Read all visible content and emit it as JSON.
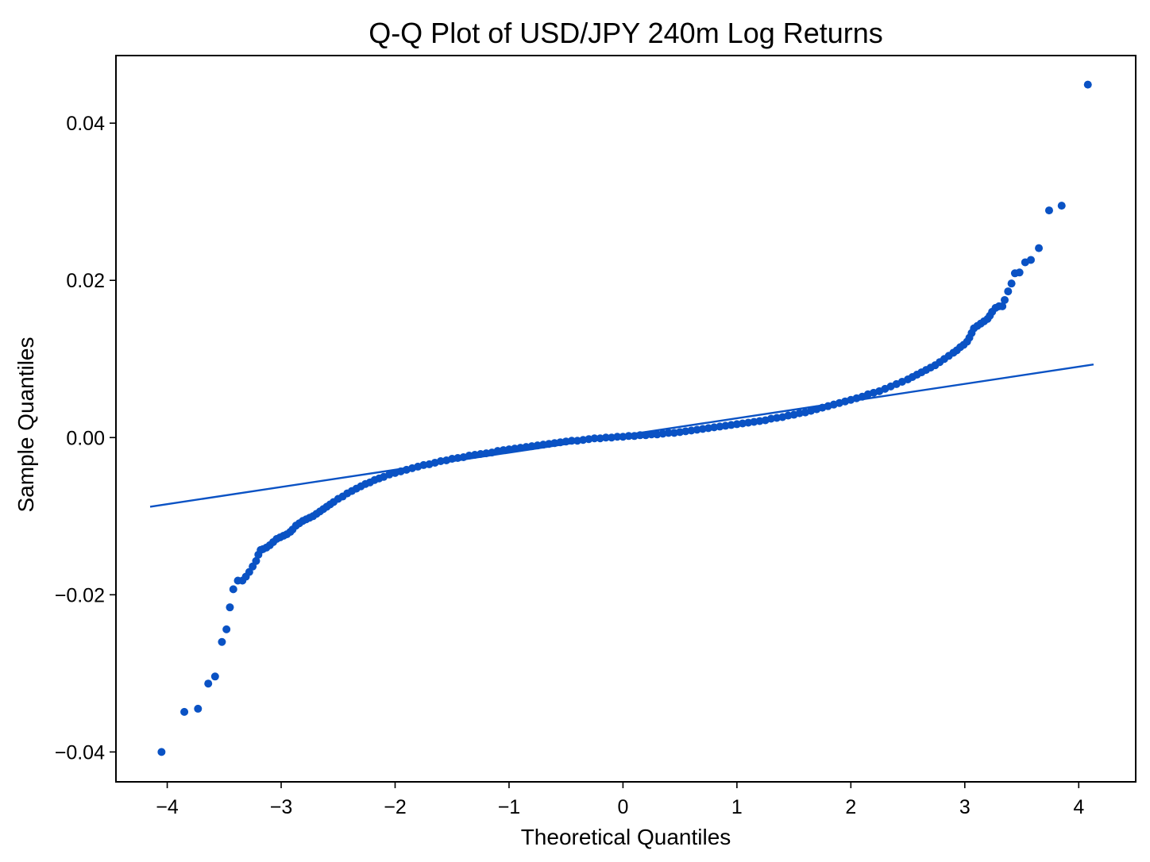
{
  "chart_data": {
    "type": "scatter",
    "title": "Q-Q Plot of USD/JPY 240m Log Returns",
    "xlabel": "Theoretical Quantiles",
    "ylabel": "Sample Quantiles",
    "xlim": [
      -4.45,
      4.5
    ],
    "ylim": [
      -0.0438,
      0.0486
    ],
    "grid": false,
    "legend": "none",
    "colors": {
      "marker": "#0a52c4",
      "line": "#0a52c4",
      "axes": "#000000"
    },
    "xticks": [
      {
        "value": -4,
        "label": "−4"
      },
      {
        "value": -3,
        "label": "−3"
      },
      {
        "value": -2,
        "label": "−2"
      },
      {
        "value": -1,
        "label": "−1"
      },
      {
        "value": 0,
        "label": "0"
      },
      {
        "value": 1,
        "label": "1"
      },
      {
        "value": 2,
        "label": "2"
      },
      {
        "value": 3,
        "label": "3"
      },
      {
        "value": 4,
        "label": "4"
      }
    ],
    "yticks": [
      {
        "value": 0.04,
        "label": "0.04"
      },
      {
        "value": 0.02,
        "label": "0.02"
      },
      {
        "value": 0.0,
        "label": "0.00"
      },
      {
        "value": -0.02,
        "label": "−0.02"
      },
      {
        "value": -0.04,
        "label": "−0.04"
      }
    ],
    "reference_line": {
      "x": [
        -4.15,
        4.13
      ],
      "y": [
        -0.0088,
        0.0093
      ]
    },
    "series": [
      {
        "points": [
          [
            -4.05,
            -0.04
          ],
          [
            -3.85,
            -0.0349
          ],
          [
            -3.73,
            -0.0345
          ],
          [
            -3.64,
            -0.0313
          ],
          [
            -3.58,
            -0.0304
          ],
          [
            -3.52,
            -0.026
          ],
          [
            -3.48,
            -0.0244
          ],
          [
            -3.45,
            -0.0216
          ],
          [
            -3.42,
            -0.0193
          ],
          [
            -3.38,
            -0.0182
          ],
          [
            -3.34,
            -0.0182
          ],
          [
            -3.31,
            -0.0177
          ],
          [
            -3.28,
            -0.0171
          ],
          [
            -3.25,
            -0.0164
          ],
          [
            -3.22,
            -0.0157
          ],
          [
            -3.2,
            -0.0149
          ],
          [
            -3.18,
            -0.0143
          ],
          [
            -3.16,
            -0.0142
          ],
          [
            -3.13,
            -0.014
          ],
          [
            -3.1,
            -0.0137
          ],
          [
            -3.07,
            -0.0133
          ],
          [
            -3.04,
            -0.0129
          ],
          [
            -3.01,
            -0.0127
          ],
          [
            -2.98,
            -0.0125
          ],
          [
            -2.95,
            -0.0123
          ],
          [
            -2.92,
            -0.012
          ],
          [
            -2.9,
            -0.0117
          ],
          [
            -2.87,
            -0.0112
          ],
          [
            -2.84,
            -0.0109
          ],
          [
            -2.81,
            -0.0106
          ],
          [
            -2.78,
            -0.0104
          ],
          [
            -2.75,
            -0.0102
          ],
          [
            -2.72,
            -0.01
          ],
          [
            -2.69,
            -0.0097
          ],
          [
            -2.66,
            -0.0094
          ],
          [
            -2.63,
            -0.0091
          ],
          [
            -2.6,
            -0.0088
          ],
          [
            -2.57,
            -0.0085
          ],
          [
            -2.54,
            -0.0082
          ],
          [
            -2.5,
            -0.0078
          ],
          [
            -2.46,
            -0.0075
          ],
          [
            -2.42,
            -0.0071
          ],
          [
            -2.38,
            -0.0068
          ],
          [
            -2.34,
            -0.0065
          ],
          [
            -2.3,
            -0.0062
          ],
          [
            -2.26,
            -0.0059
          ],
          [
            -2.22,
            -0.0057
          ],
          [
            -2.18,
            -0.0054
          ],
          [
            -2.14,
            -0.0052
          ],
          [
            -2.1,
            -0.005
          ],
          [
            -2.05,
            -0.0047
          ],
          [
            -2.0,
            -0.0045
          ],
          [
            -1.95,
            -0.0043
          ],
          [
            -1.9,
            -0.0041
          ],
          [
            -1.85,
            -0.0039
          ],
          [
            -1.8,
            -0.0037
          ],
          [
            -1.75,
            -0.0035
          ],
          [
            -1.7,
            -0.0034
          ],
          [
            -1.65,
            -0.0032
          ],
          [
            -1.6,
            -0.003
          ],
          [
            -1.55,
            -0.0029
          ],
          [
            -1.5,
            -0.0027
          ],
          [
            -1.45,
            -0.0026
          ],
          [
            -1.4,
            -0.0025
          ],
          [
            -1.35,
            -0.0023
          ],
          [
            -1.3,
            -0.0022
          ],
          [
            -1.25,
            -0.0021
          ],
          [
            -1.2,
            -0.002
          ],
          [
            -1.15,
            -0.0019
          ],
          [
            -1.1,
            -0.0017
          ],
          [
            -1.05,
            -0.0016
          ],
          [
            -1.0,
            -0.0015
          ],
          [
            -0.95,
            -0.0014
          ],
          [
            -0.9,
            -0.0013
          ],
          [
            -0.85,
            -0.0012
          ],
          [
            -0.8,
            -0.0011
          ],
          [
            -0.75,
            -0.001
          ],
          [
            -0.7,
            -0.0009
          ],
          [
            -0.65,
            -0.0008
          ],
          [
            -0.6,
            -0.0007
          ],
          [
            -0.55,
            -0.0006
          ],
          [
            -0.5,
            -0.0005
          ],
          [
            -0.45,
            -0.0004
          ],
          [
            -0.4,
            -0.0004
          ],
          [
            -0.35,
            -0.0003
          ],
          [
            -0.3,
            -0.0002
          ],
          [
            -0.25,
            -0.0001
          ],
          [
            -0.2,
            -0.0001
          ],
          [
            -0.15,
            0.0
          ],
          [
            -0.1,
            0.0
          ],
          [
            -0.05,
            0.0001
          ],
          [
            0.0,
            0.0001
          ],
          [
            0.05,
            0.0002
          ],
          [
            0.1,
            0.0002
          ],
          [
            0.15,
            0.0003
          ],
          [
            0.2,
            0.0003
          ],
          [
            0.25,
            0.0004
          ],
          [
            0.3,
            0.0004
          ],
          [
            0.35,
            0.0005
          ],
          [
            0.4,
            0.0006
          ],
          [
            0.45,
            0.0006
          ],
          [
            0.5,
            0.0007
          ],
          [
            0.55,
            0.0008
          ],
          [
            0.6,
            0.0009
          ],
          [
            0.65,
            0.001
          ],
          [
            0.7,
            0.0011
          ],
          [
            0.75,
            0.0012
          ],
          [
            0.8,
            0.0013
          ],
          [
            0.85,
            0.0014
          ],
          [
            0.9,
            0.0015
          ],
          [
            0.95,
            0.0016
          ],
          [
            1.0,
            0.0017
          ],
          [
            1.05,
            0.0018
          ],
          [
            1.1,
            0.0019
          ],
          [
            1.15,
            0.002
          ],
          [
            1.2,
            0.0021
          ],
          [
            1.25,
            0.0022
          ],
          [
            1.3,
            0.0024
          ],
          [
            1.35,
            0.0025
          ],
          [
            1.4,
            0.0026
          ],
          [
            1.45,
            0.0028
          ],
          [
            1.5,
            0.0029
          ],
          [
            1.55,
            0.0031
          ],
          [
            1.6,
            0.0032
          ],
          [
            1.65,
            0.0034
          ],
          [
            1.7,
            0.0036
          ],
          [
            1.75,
            0.0038
          ],
          [
            1.8,
            0.004
          ],
          [
            1.85,
            0.0042
          ],
          [
            1.9,
            0.0044
          ],
          [
            1.95,
            0.0046
          ],
          [
            2.0,
            0.0048
          ],
          [
            2.05,
            0.005
          ],
          [
            2.1,
            0.0052
          ],
          [
            2.15,
            0.0055
          ],
          [
            2.2,
            0.0057
          ],
          [
            2.25,
            0.0059
          ],
          [
            2.3,
            0.0062
          ],
          [
            2.35,
            0.0065
          ],
          [
            2.4,
            0.0068
          ],
          [
            2.45,
            0.0071
          ],
          [
            2.5,
            0.0074
          ],
          [
            2.54,
            0.0077
          ],
          [
            2.58,
            0.008
          ],
          [
            2.62,
            0.0083
          ],
          [
            2.66,
            0.0086
          ],
          [
            2.7,
            0.0089
          ],
          [
            2.74,
            0.0092
          ],
          [
            2.78,
            0.0096
          ],
          [
            2.82,
            0.01
          ],
          [
            2.86,
            0.0104
          ],
          [
            2.9,
            0.0108
          ],
          [
            2.93,
            0.0111
          ],
          [
            2.96,
            0.0115
          ],
          [
            2.99,
            0.0118
          ],
          [
            3.02,
            0.0122
          ],
          [
            3.04,
            0.0127
          ],
          [
            3.06,
            0.0133
          ],
          [
            3.08,
            0.0139
          ],
          [
            3.11,
            0.0142
          ],
          [
            3.14,
            0.0145
          ],
          [
            3.17,
            0.0148
          ],
          [
            3.2,
            0.0151
          ],
          [
            3.22,
            0.0155
          ],
          [
            3.24,
            0.016
          ],
          [
            3.27,
            0.0165
          ],
          [
            3.3,
            0.0167
          ],
          [
            3.33,
            0.0167
          ],
          [
            3.35,
            0.0175
          ],
          [
            3.38,
            0.0186
          ],
          [
            3.41,
            0.0196
          ],
          [
            3.44,
            0.0209
          ],
          [
            3.48,
            0.021
          ],
          [
            3.53,
            0.0223
          ],
          [
            3.58,
            0.0226
          ],
          [
            3.65,
            0.0241
          ],
          [
            3.74,
            0.0289
          ],
          [
            3.85,
            0.0295
          ],
          [
            4.08,
            0.0449
          ]
        ]
      }
    ]
  }
}
